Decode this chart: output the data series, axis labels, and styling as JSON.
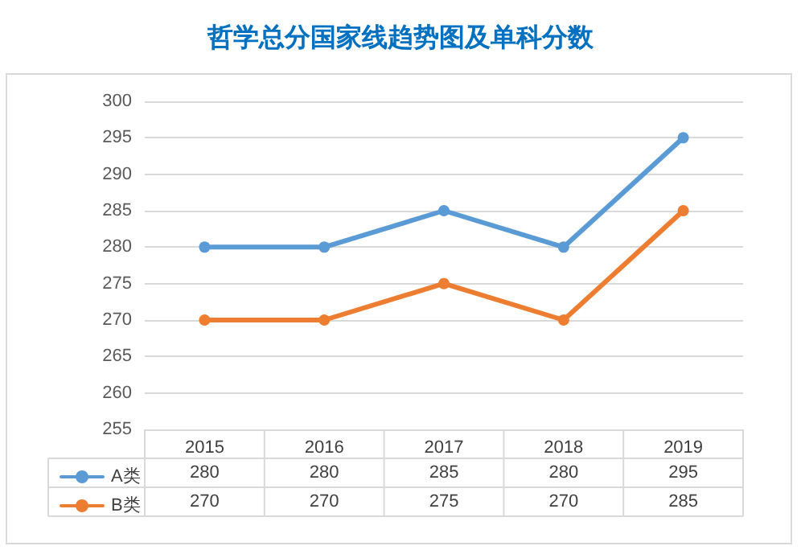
{
  "chart_data": {
    "type": "line",
    "title": "哲学总分国家线趋势图及单科分数",
    "categories": [
      "2015",
      "2016",
      "2017",
      "2018",
      "2019"
    ],
    "series": [
      {
        "name": "A类",
        "color": "#5b9bd5",
        "values": [
          280,
          280,
          285,
          280,
          295
        ]
      },
      {
        "name": "B类",
        "color": "#ed7d31",
        "values": [
          270,
          270,
          275,
          270,
          285
        ]
      }
    ],
    "ylim": [
      255,
      300
    ],
    "yticks": [
      255,
      260,
      265,
      270,
      275,
      280,
      285,
      290,
      295,
      300
    ],
    "grid": "y",
    "legend": "bottom",
    "marker": "circle",
    "line_style": "solid",
    "data_labels": true
  }
}
